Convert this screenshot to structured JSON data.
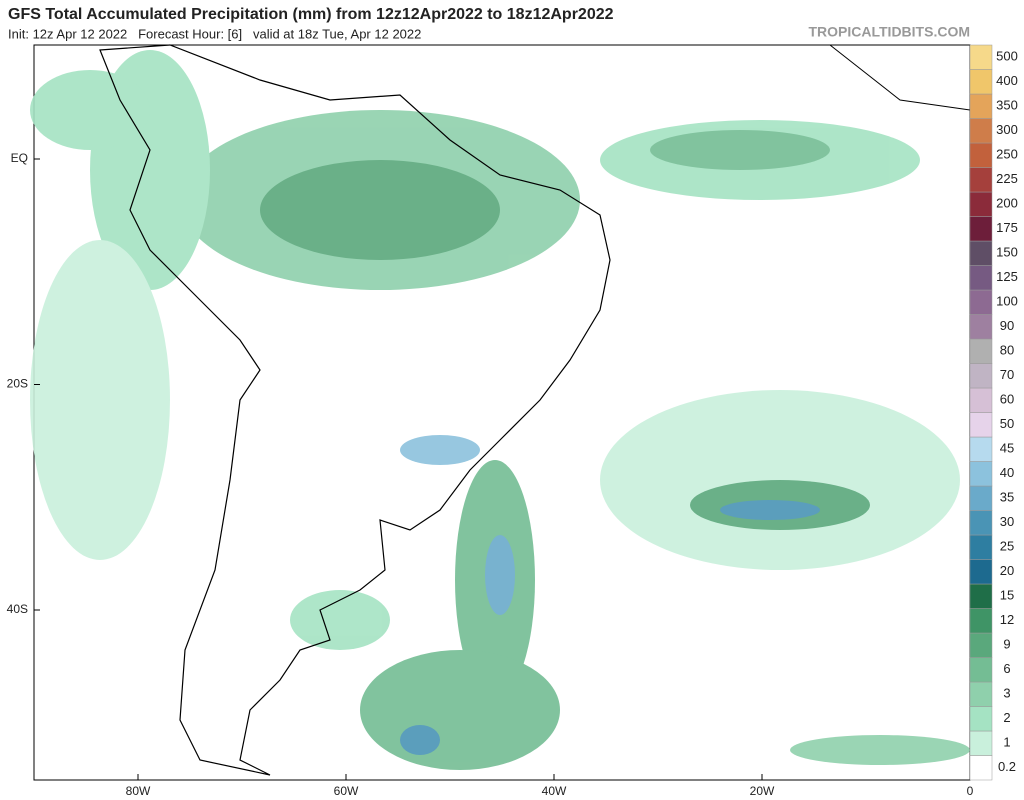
{
  "header": {
    "title": "GFS Total Accumulated Precipitation (mm) from 12z12Apr2022 to 18z12Apr2022",
    "init": "Init: 12z Apr 12 2022   Forecast Hour: [6]   valid at 18z Tue, Apr 12 2022",
    "source": "TROPICALTIDBITS.COM"
  },
  "map": {
    "lat_labels": [
      "EQ",
      "20S",
      "40S"
    ],
    "lon_labels": [
      "80W",
      "60W",
      "40W",
      "20W",
      "0"
    ]
  },
  "colorbar": {
    "levels": [
      {
        "label": "0.2",
        "color": "#ffffff"
      },
      {
        "label": "1",
        "color": "#c9f0dc"
      },
      {
        "label": "2",
        "color": "#a5e3c3"
      },
      {
        "label": "3",
        "color": "#8fd0ac"
      },
      {
        "label": "6",
        "color": "#74bd94"
      },
      {
        "label": "9",
        "color": "#5aa87c"
      },
      {
        "label": "12",
        "color": "#3f9466"
      },
      {
        "label": "15",
        "color": "#1f6e48"
      },
      {
        "label": "20",
        "color": "#1d6a8f"
      },
      {
        "label": "25",
        "color": "#2e7ea1"
      },
      {
        "label": "30",
        "color": "#4a94b5"
      },
      {
        "label": "35",
        "color": "#6aaaca"
      },
      {
        "label": "40",
        "color": "#8cc2dd"
      },
      {
        "label": "45",
        "color": "#b6daee"
      },
      {
        "label": "50",
        "color": "#e6d3ea"
      },
      {
        "label": "60",
        "color": "#d6c0d6"
      },
      {
        "label": "70",
        "color": "#c0b4c4"
      },
      {
        "label": "80",
        "color": "#b0b0b0"
      },
      {
        "label": "90",
        "color": "#9e80a0"
      },
      {
        "label": "100",
        "color": "#8d6a92"
      },
      {
        "label": "125",
        "color": "#765a82"
      },
      {
        "label": "150",
        "color": "#5f4e66"
      },
      {
        "label": "175",
        "color": "#6d1e3a"
      },
      {
        "label": "200",
        "color": "#8b2b3a"
      },
      {
        "label": "225",
        "color": "#a5403c"
      },
      {
        "label": "250",
        "color": "#c2613c"
      },
      {
        "label": "300",
        "color": "#cf7d4a"
      },
      {
        "label": "350",
        "color": "#e4a45a"
      },
      {
        "label": "400",
        "color": "#f0c66a"
      },
      {
        "label": "500",
        "color": "#f6d98a"
      }
    ]
  }
}
